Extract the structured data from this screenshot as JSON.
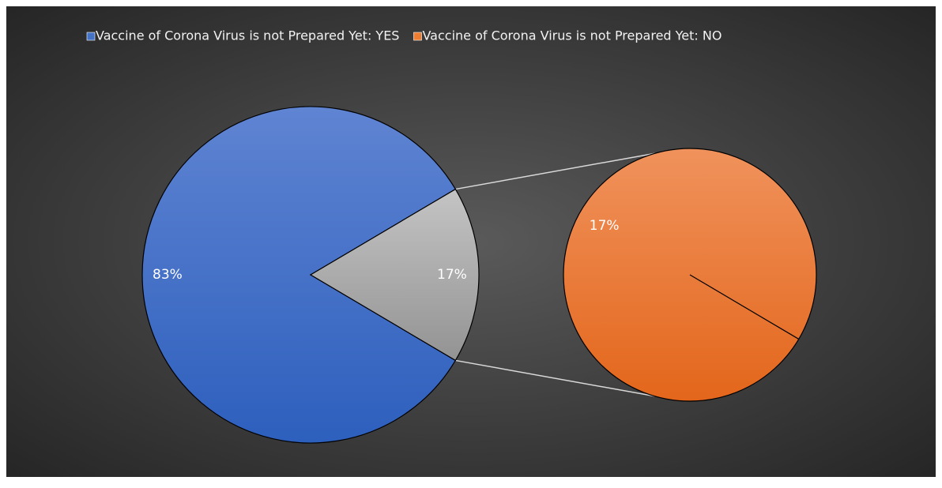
{
  "chart_data": {
    "type": "pie-of-pie",
    "categories": [
      "Vaccine of Corona Virus is not Prepared Yet:  YES",
      "Vaccine of Corona Virus is not Prepared Yet:  NO"
    ],
    "values": [
      83,
      17
    ],
    "value_labels": [
      "83%",
      "17%"
    ],
    "colors": [
      "#4472c4",
      "#ed7d31"
    ],
    "legend": "top"
  }
}
